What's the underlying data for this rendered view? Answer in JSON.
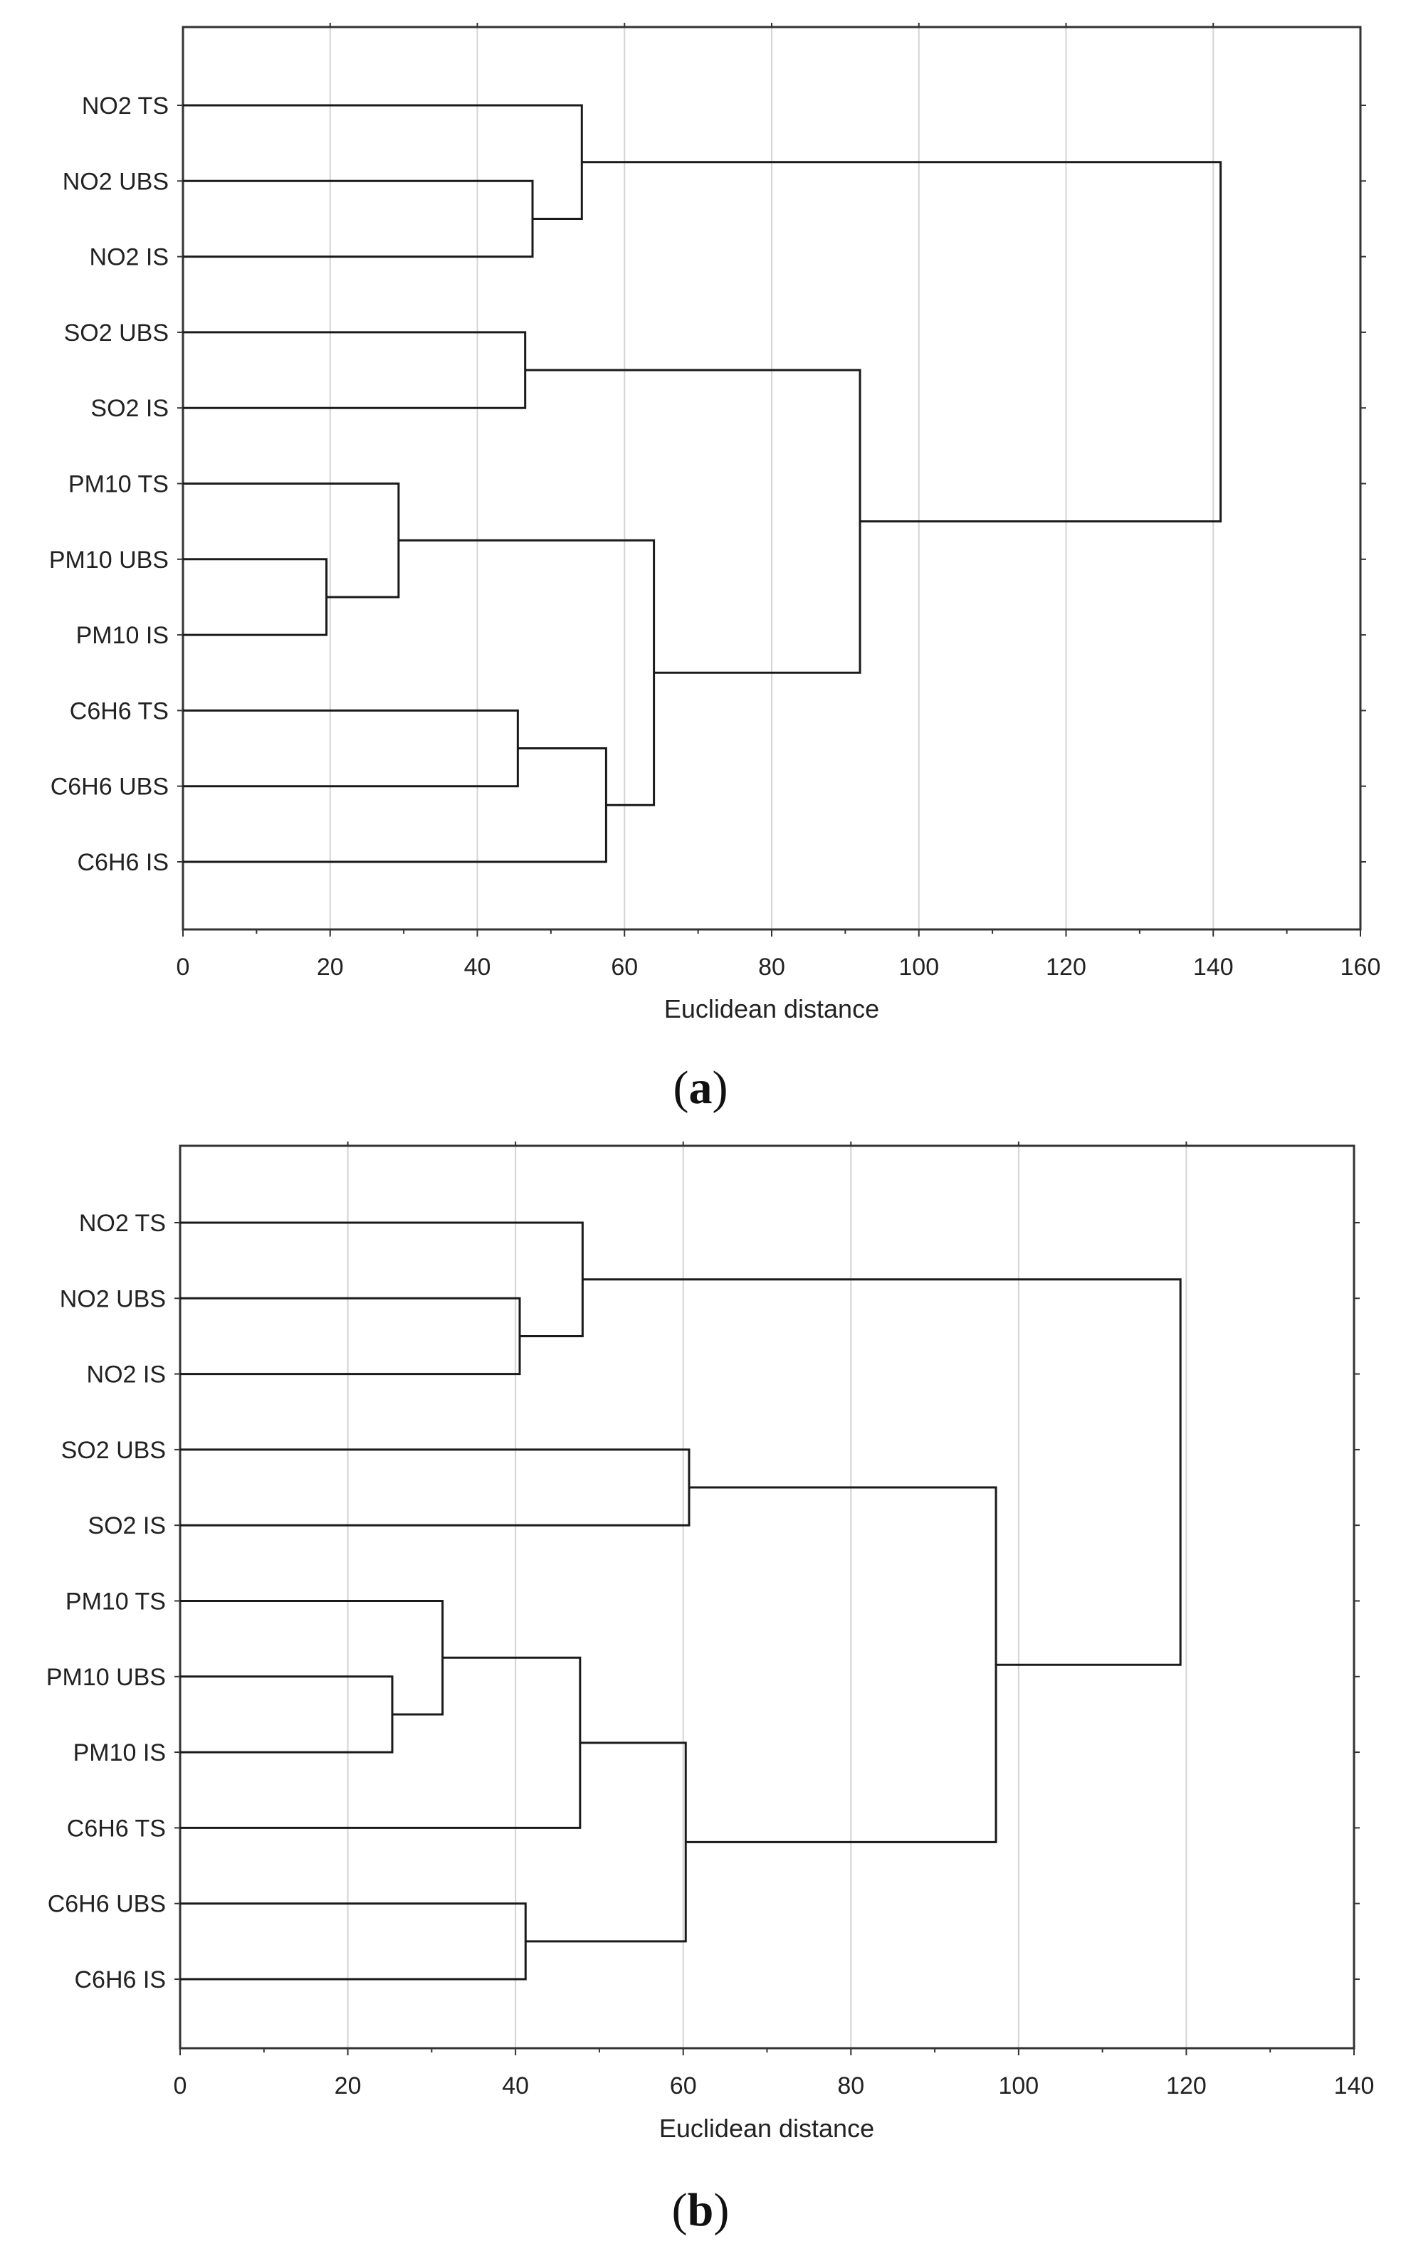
{
  "chart_data": [
    {
      "type": "dendrogram",
      "caption_letter": "a",
      "xlabel": "Euclidean distance",
      "xlim": [
        0,
        160
      ],
      "xticks": [
        0,
        20,
        40,
        60,
        80,
        100,
        120,
        140,
        160
      ],
      "grid": true,
      "leaves": [
        "NO2 TS",
        "NO2 UBS",
        "NO2 IS",
        "SO2 UBS",
        "SO2 IS",
        "PM10 TS",
        "PM10 UBS",
        "PM10 IS",
        "C6H6 TS",
        "C6H6 UBS",
        "C6H6 IS"
      ],
      "merges": [
        {
          "left": "PM10 UBS",
          "right": "PM10 IS",
          "height": 19.5
        },
        {
          "left": "PM10 TS",
          "right": "m0",
          "height": 29.3
        },
        {
          "left": "C6H6 TS",
          "right": "C6H6 UBS",
          "height": 45.5
        },
        {
          "left": "SO2 UBS",
          "right": "SO2 IS",
          "height": 46.5
        },
        {
          "left": "NO2 UBS",
          "right": "NO2 IS",
          "height": 47.5
        },
        {
          "left": "NO2 TS",
          "right": "m4",
          "height": 54.2
        },
        {
          "left": "m2",
          "right": "C6H6 IS",
          "height": 57.5
        },
        {
          "left": "m1",
          "right": "m6",
          "height": 64.0
        },
        {
          "left": "m3",
          "right": "m7",
          "height": 92.0
        },
        {
          "left": "m5",
          "right": "m8",
          "height": 141.0
        }
      ]
    },
    {
      "type": "dendrogram",
      "caption_letter": "b",
      "xlabel": "Euclidean distance",
      "xlim": [
        0,
        140
      ],
      "xticks": [
        0,
        20,
        40,
        60,
        80,
        100,
        120,
        140
      ],
      "grid": true,
      "leaves": [
        "NO2 TS",
        "NO2 UBS",
        "NO2 IS",
        "SO2 UBS",
        "SO2 IS",
        "PM10 TS",
        "PM10 UBS",
        "PM10 IS",
        "C6H6 TS",
        "C6H6 UBS",
        "C6H6 IS"
      ],
      "merges": [
        {
          "left": "PM10 UBS",
          "right": "PM10 IS",
          "height": 25.3
        },
        {
          "left": "PM10 TS",
          "right": "m0",
          "height": 31.3
        },
        {
          "left": "NO2 UBS",
          "right": "NO2 IS",
          "height": 40.5
        },
        {
          "left": "C6H6 UBS",
          "right": "C6H6 IS",
          "height": 41.2
        },
        {
          "left": "m1",
          "right": "C6H6 TS",
          "height": 47.7
        },
        {
          "left": "NO2 TS",
          "right": "m2",
          "height": 48.0
        },
        {
          "left": "m4",
          "right": "m3",
          "height": 60.3
        },
        {
          "left": "SO2 UBS",
          "right": "SO2 IS",
          "height": 60.7
        },
        {
          "left": "m7",
          "right": "m6",
          "height": 97.3
        },
        {
          "left": "m5",
          "right": "m8",
          "height": 119.3
        }
      ]
    }
  ]
}
